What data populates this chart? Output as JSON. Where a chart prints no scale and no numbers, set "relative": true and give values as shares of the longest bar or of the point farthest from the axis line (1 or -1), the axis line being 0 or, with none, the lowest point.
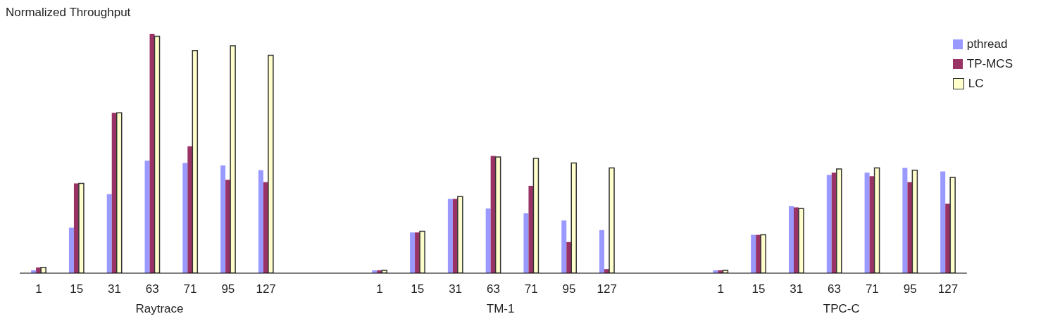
{
  "chart_data": {
    "type": "bar",
    "ylabel": "Normalized Throughput",
    "relative": true,
    "legend": "top right",
    "categories": [
      "1",
      "15",
      "31",
      "63",
      "71",
      "95",
      "127",
      null,
      null,
      "1",
      "15",
      "31",
      "63",
      "71",
      "95",
      "127",
      null,
      null,
      "1",
      "15",
      "31",
      "63",
      "71",
      "95",
      "127"
    ],
    "series": [
      {
        "name": "pthread",
        "color": "#9999ff",
        "values": [
          0.012,
          0.19,
          0.33,
          0.47,
          0.46,
          0.45,
          0.43,
          null,
          null,
          0.012,
          0.17,
          0.31,
          0.27,
          0.25,
          0.22,
          0.18,
          null,
          null,
          0.012,
          0.16,
          0.28,
          0.41,
          0.42,
          0.44,
          0.425
        ]
      },
      {
        "name": "TP-MCS",
        "color": "#993366",
        "values": [
          0.024,
          0.375,
          0.67,
          1,
          0.53,
          0.39,
          0.38,
          null,
          null,
          0.012,
          0.17,
          0.31,
          0.49,
          0.365,
          0.13,
          0.017,
          null,
          null,
          0.012,
          0.16,
          0.275,
          0.42,
          0.405,
          0.38,
          0.29
        ]
      },
      {
        "name": "LC",
        "color": "#ffffcc",
        "values": [
          0.024,
          0.375,
          0.67,
          0.99,
          0.93,
          0.95,
          0.91,
          null,
          null,
          0.012,
          0.175,
          0.32,
          0.485,
          0.48,
          0.46,
          0.44,
          null,
          null,
          0.012,
          0.16,
          0.27,
          0.435,
          0.44,
          0.43,
          0.4
        ]
      }
    ],
    "annotations": [
      "Raytrace",
      "TM-1",
      "TPC-C"
    ]
  }
}
